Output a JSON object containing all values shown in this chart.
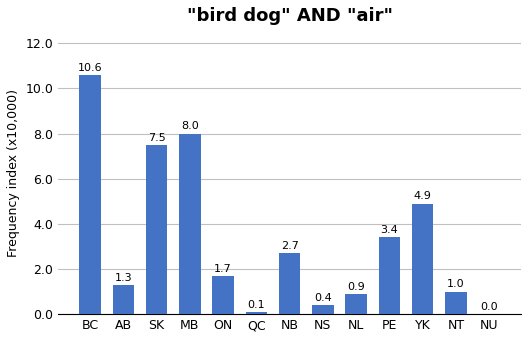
{
  "title": "\"bird dog\" AND \"air\"",
  "categories": [
    "BC",
    "AB",
    "SK",
    "MB",
    "ON",
    "QC",
    "NB",
    "NS",
    "NL",
    "PE",
    "YK",
    "NT",
    "NU"
  ],
  "values": [
    10.6,
    1.3,
    7.5,
    8.0,
    1.7,
    0.1,
    2.7,
    0.4,
    0.9,
    3.4,
    4.9,
    1.0,
    0.0
  ],
  "bar_color": "#4472c4",
  "ylabel": "Frequency index (x10,000)",
  "ylim": [
    0,
    12.5
  ],
  "yticks": [
    0.0,
    2.0,
    4.0,
    6.0,
    8.0,
    10.0,
    12.0
  ],
  "title_fontsize": 13,
  "label_fontsize": 9,
  "tick_fontsize": 9,
  "bar_label_fontsize": 8
}
